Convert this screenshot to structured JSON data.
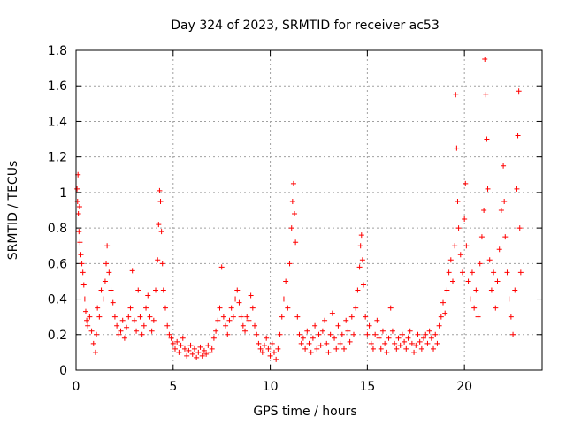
{
  "chart_data": {
    "type": "scatter",
    "title": "Day 324 of 2023, SRMTID for receiver ac53",
    "xlabel": "GPS time / hours",
    "ylabel": "SRMTID / TECUs",
    "xlim": [
      0,
      24
    ],
    "ylim": [
      0,
      1.8
    ],
    "xticks": [
      0,
      5,
      10,
      15,
      20
    ],
    "yticks": [
      0,
      0.2,
      0.4,
      0.6,
      0.8,
      1,
      1.2,
      1.4,
      1.6,
      1.8
    ],
    "ytick_labels": [
      "0",
      "0.2",
      "0.4",
      "0.6",
      "0.8",
      "1",
      "1.2",
      "1.4",
      "1.6",
      "1.8"
    ],
    "grid": true,
    "marker": "+",
    "color": "#ff0000",
    "series": [
      {
        "name": "SRMTID",
        "points": [
          [
            0.05,
            1.02
          ],
          [
            0.08,
            0.95
          ],
          [
            0.1,
            1.1
          ],
          [
            0.12,
            0.88
          ],
          [
            0.15,
            0.78
          ],
          [
            0.18,
            0.92
          ],
          [
            0.2,
            0.72
          ],
          [
            0.25,
            0.65
          ],
          [
            0.3,
            0.6
          ],
          [
            0.35,
            0.55
          ],
          [
            0.4,
            0.48
          ],
          [
            0.45,
            0.4
          ],
          [
            0.5,
            0.33
          ],
          [
            0.55,
            0.28
          ],
          [
            0.6,
            0.25
          ],
          [
            0.7,
            0.3
          ],
          [
            0.8,
            0.22
          ],
          [
            0.9,
            0.15
          ],
          [
            1.0,
            0.1
          ],
          [
            1.05,
            0.2
          ],
          [
            1.1,
            0.35
          ],
          [
            1.2,
            0.3
          ],
          [
            1.3,
            0.45
          ],
          [
            1.4,
            0.4
          ],
          [
            1.5,
            0.5
          ],
          [
            1.55,
            0.6
          ],
          [
            1.6,
            0.7
          ],
          [
            1.7,
            0.55
          ],
          [
            1.8,
            0.45
          ],
          [
            1.9,
            0.38
          ],
          [
            2.0,
            0.3
          ],
          [
            2.1,
            0.25
          ],
          [
            2.2,
            0.2
          ],
          [
            2.3,
            0.22
          ],
          [
            2.4,
            0.28
          ],
          [
            2.5,
            0.18
          ],
          [
            2.6,
            0.24
          ],
          [
            2.7,
            0.3
          ],
          [
            2.8,
            0.35
          ],
          [
            2.9,
            0.56
          ],
          [
            3.0,
            0.28
          ],
          [
            3.1,
            0.22
          ],
          [
            3.2,
            0.45
          ],
          [
            3.3,
            0.3
          ],
          [
            3.4,
            0.2
          ],
          [
            3.5,
            0.25
          ],
          [
            3.6,
            0.35
          ],
          [
            3.7,
            0.42
          ],
          [
            3.8,
            0.3
          ],
          [
            3.9,
            0.22
          ],
          [
            4.0,
            0.28
          ],
          [
            4.1,
            0.45
          ],
          [
            4.2,
            0.62
          ],
          [
            4.25,
            0.82
          ],
          [
            4.3,
            1.01
          ],
          [
            4.35,
            0.95
          ],
          [
            4.4,
            0.78
          ],
          [
            4.45,
            0.6
          ],
          [
            4.5,
            0.45
          ],
          [
            4.6,
            0.35
          ],
          [
            4.7,
            0.25
          ],
          [
            4.8,
            0.2
          ],
          [
            4.9,
            0.18
          ],
          [
            5.0,
            0.15
          ],
          [
            5.1,
            0.12
          ],
          [
            5.2,
            0.16
          ],
          [
            5.3,
            0.1
          ],
          [
            5.4,
            0.14
          ],
          [
            5.5,
            0.18
          ],
          [
            5.6,
            0.12
          ],
          [
            5.7,
            0.08
          ],
          [
            5.8,
            0.11
          ],
          [
            5.9,
            0.14
          ],
          [
            6.0,
            0.09
          ],
          [
            6.1,
            0.12
          ],
          [
            6.2,
            0.07
          ],
          [
            6.3,
            0.1
          ],
          [
            6.4,
            0.13
          ],
          [
            6.5,
            0.08
          ],
          [
            6.6,
            0.11
          ],
          [
            6.7,
            0.09
          ],
          [
            6.8,
            0.14
          ],
          [
            6.9,
            0.1
          ],
          [
            7.0,
            0.12
          ],
          [
            7.1,
            0.18
          ],
          [
            7.2,
            0.22
          ],
          [
            7.3,
            0.28
          ],
          [
            7.4,
            0.35
          ],
          [
            7.5,
            0.58
          ],
          [
            7.6,
            0.3
          ],
          [
            7.7,
            0.25
          ],
          [
            7.8,
            0.2
          ],
          [
            7.9,
            0.28
          ],
          [
            8.0,
            0.35
          ],
          [
            8.1,
            0.3
          ],
          [
            8.2,
            0.4
          ],
          [
            8.3,
            0.45
          ],
          [
            8.4,
            0.38
          ],
          [
            8.5,
            0.3
          ],
          [
            8.6,
            0.25
          ],
          [
            8.7,
            0.22
          ],
          [
            8.8,
            0.3
          ],
          [
            8.9,
            0.28
          ],
          [
            9.0,
            0.42
          ],
          [
            9.1,
            0.35
          ],
          [
            9.2,
            0.25
          ],
          [
            9.3,
            0.2
          ],
          [
            9.4,
            0.15
          ],
          [
            9.5,
            0.12
          ],
          [
            9.6,
            0.1
          ],
          [
            9.7,
            0.14
          ],
          [
            9.8,
            0.18
          ],
          [
            9.9,
            0.12
          ],
          [
            10.0,
            0.08
          ],
          [
            10.1,
            0.15
          ],
          [
            10.2,
            0.1
          ],
          [
            10.3,
            0.06
          ],
          [
            10.4,
            0.12
          ],
          [
            10.5,
            0.2
          ],
          [
            10.6,
            0.3
          ],
          [
            10.7,
            0.4
          ],
          [
            10.8,
            0.5
          ],
          [
            10.9,
            0.35
          ],
          [
            11.0,
            0.6
          ],
          [
            11.1,
            0.8
          ],
          [
            11.15,
            0.95
          ],
          [
            11.2,
            1.05
          ],
          [
            11.25,
            0.88
          ],
          [
            11.3,
            0.72
          ],
          [
            11.4,
            0.3
          ],
          [
            11.5,
            0.2
          ],
          [
            11.6,
            0.15
          ],
          [
            11.7,
            0.18
          ],
          [
            11.8,
            0.12
          ],
          [
            11.9,
            0.22
          ],
          [
            12.0,
            0.15
          ],
          [
            12.1,
            0.1
          ],
          [
            12.2,
            0.18
          ],
          [
            12.3,
            0.25
          ],
          [
            12.4,
            0.12
          ],
          [
            12.5,
            0.2
          ],
          [
            12.6,
            0.14
          ],
          [
            12.7,
            0.22
          ],
          [
            12.8,
            0.28
          ],
          [
            12.9,
            0.15
          ],
          [
            13.0,
            0.1
          ],
          [
            13.1,
            0.2
          ],
          [
            13.2,
            0.32
          ],
          [
            13.3,
            0.18
          ],
          [
            13.4,
            0.12
          ],
          [
            13.5,
            0.25
          ],
          [
            13.6,
            0.15
          ],
          [
            13.7,
            0.2
          ],
          [
            13.8,
            0.12
          ],
          [
            13.9,
            0.28
          ],
          [
            14.0,
            0.22
          ],
          [
            14.1,
            0.16
          ],
          [
            14.2,
            0.3
          ],
          [
            14.3,
            0.2
          ],
          [
            14.4,
            0.35
          ],
          [
            14.5,
            0.45
          ],
          [
            14.6,
            0.58
          ],
          [
            14.65,
            0.7
          ],
          [
            14.7,
            0.76
          ],
          [
            14.75,
            0.62
          ],
          [
            14.8,
            0.48
          ],
          [
            14.9,
            0.3
          ],
          [
            15.0,
            0.2
          ],
          [
            15.1,
            0.25
          ],
          [
            15.2,
            0.15
          ],
          [
            15.3,
            0.12
          ],
          [
            15.4,
            0.2
          ],
          [
            15.5,
            0.28
          ],
          [
            15.6,
            0.18
          ],
          [
            15.7,
            0.12
          ],
          [
            15.8,
            0.22
          ],
          [
            15.9,
            0.15
          ],
          [
            16.0,
            0.1
          ],
          [
            16.1,
            0.18
          ],
          [
            16.2,
            0.35
          ],
          [
            16.3,
            0.22
          ],
          [
            16.4,
            0.15
          ],
          [
            16.5,
            0.12
          ],
          [
            16.6,
            0.18
          ],
          [
            16.7,
            0.14
          ],
          [
            16.8,
            0.2
          ],
          [
            16.9,
            0.16
          ],
          [
            17.0,
            0.12
          ],
          [
            17.1,
            0.18
          ],
          [
            17.2,
            0.22
          ],
          [
            17.3,
            0.15
          ],
          [
            17.4,
            0.1
          ],
          [
            17.5,
            0.14
          ],
          [
            17.6,
            0.2
          ],
          [
            17.7,
            0.16
          ],
          [
            17.8,
            0.12
          ],
          [
            17.9,
            0.18
          ],
          [
            18.0,
            0.2
          ],
          [
            18.1,
            0.15
          ],
          [
            18.2,
            0.22
          ],
          [
            18.3,
            0.18
          ],
          [
            18.4,
            0.12
          ],
          [
            18.5,
            0.2
          ],
          [
            18.6,
            0.15
          ],
          [
            18.7,
            0.25
          ],
          [
            18.8,
            0.3
          ],
          [
            18.9,
            0.38
          ],
          [
            19.0,
            0.32
          ],
          [
            19.1,
            0.45
          ],
          [
            19.2,
            0.55
          ],
          [
            19.3,
            0.62
          ],
          [
            19.4,
            0.5
          ],
          [
            19.5,
            0.7
          ],
          [
            19.55,
            1.55
          ],
          [
            19.6,
            1.25
          ],
          [
            19.65,
            0.95
          ],
          [
            19.7,
            0.8
          ],
          [
            19.8,
            0.65
          ],
          [
            19.9,
            0.55
          ],
          [
            20.0,
            0.85
          ],
          [
            20.05,
            1.05
          ],
          [
            20.1,
            0.7
          ],
          [
            20.2,
            0.5
          ],
          [
            20.3,
            0.4
          ],
          [
            20.4,
            0.55
          ],
          [
            20.5,
            0.35
          ],
          [
            20.6,
            0.45
          ],
          [
            20.7,
            0.3
          ],
          [
            20.8,
            0.6
          ],
          [
            20.9,
            0.75
          ],
          [
            21.0,
            0.9
          ],
          [
            21.05,
            1.75
          ],
          [
            21.1,
            1.55
          ],
          [
            21.15,
            1.3
          ],
          [
            21.2,
            1.02
          ],
          [
            21.3,
            0.62
          ],
          [
            21.4,
            0.45
          ],
          [
            21.5,
            0.55
          ],
          [
            21.6,
            0.35
          ],
          [
            21.7,
            0.5
          ],
          [
            21.8,
            0.68
          ],
          [
            21.9,
            0.9
          ],
          [
            22.0,
            1.15
          ],
          [
            22.05,
            0.95
          ],
          [
            22.1,
            0.75
          ],
          [
            22.2,
            0.55
          ],
          [
            22.3,
            0.4
          ],
          [
            22.4,
            0.3
          ],
          [
            22.5,
            0.2
          ],
          [
            22.6,
            0.45
          ],
          [
            22.7,
            1.02
          ],
          [
            22.75,
            1.32
          ],
          [
            22.8,
            1.57
          ],
          [
            22.85,
            0.8
          ],
          [
            22.9,
            0.55
          ]
        ]
      }
    ]
  }
}
